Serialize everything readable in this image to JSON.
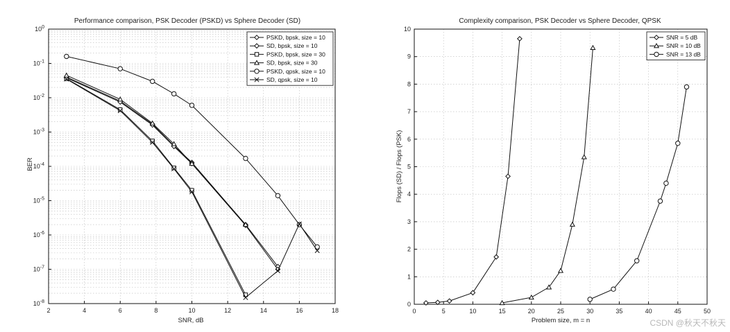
{
  "chart_data": [
    {
      "type": "line",
      "title": "Performance comparison, PSK Decoder (PSKD) vs Sphere Decoder (SD)",
      "xlabel": "SNR, dB",
      "ylabel": "BER",
      "xlim": [
        2,
        18
      ],
      "ylim": [
        1e-08,
        1
      ],
      "yscale": "log",
      "grid": true,
      "legend_position": "top-right",
      "xticks": [
        "2",
        "4",
        "6",
        "8",
        "10",
        "12",
        "14",
        "16",
        "18"
      ],
      "yticks": [
        {
          "base": "10",
          "exp": "0"
        },
        {
          "base": "10",
          "exp": "-1"
        },
        {
          "base": "10",
          "exp": "-2"
        },
        {
          "base": "10",
          "exp": "-3"
        },
        {
          "base": "10",
          "exp": "-4"
        },
        {
          "base": "10",
          "exp": "-5"
        },
        {
          "base": "10",
          "exp": "-6"
        },
        {
          "base": "10",
          "exp": "-7"
        },
        {
          "base": "10",
          "exp": "-8"
        }
      ],
      "series": [
        {
          "name": "PSKD, bpsk, size = 10",
          "marker": "diamond",
          "x": [
            3,
            6,
            7.8,
            9,
            10,
            13,
            14.8
          ],
          "y": [
            0.04,
            0.008,
            0.0017,
            0.0004,
            0.00013,
            2e-06,
            1.2e-07
          ]
        },
        {
          "name": "SD, bpsk, size = 10",
          "marker": "diamond",
          "x": [
            3,
            6,
            7.8,
            9,
            10,
            13,
            14.8
          ],
          "y": [
            0.038,
            0.0075,
            0.0016,
            0.00038,
            0.00012,
            1.9e-06,
            1e-07
          ]
        },
        {
          "name": "PSKD, bpsk, size = 30",
          "marker": "square",
          "x": [
            3,
            6,
            7.8,
            9,
            10,
            13
          ],
          "y": [
            0.036,
            0.0045,
            0.00055,
            9e-05,
            2e-05,
            1.8e-08
          ]
        },
        {
          "name": "SD, bpsk, size = 30",
          "marker": "triangle",
          "x": [
            3,
            6,
            7.8,
            9,
            10,
            13
          ],
          "y": [
            0.045,
            0.009,
            0.0018,
            0.00045,
            0.00012,
            2e-06
          ]
        },
        {
          "name": "PSKD, qpsk, size = 10",
          "marker": "circle",
          "x": [
            3,
            6,
            7.8,
            9,
            10,
            13,
            14.8,
            16,
            17
          ],
          "y": [
            0.16,
            0.07,
            0.03,
            0.013,
            0.006,
            0.00017,
            1.4e-05,
            2e-06,
            4.5e-07
          ]
        },
        {
          "name": "SD, qpsk, size = 10",
          "marker": "x",
          "x": [
            3,
            6,
            7.8,
            9,
            10,
            13,
            14.8,
            16,
            17
          ],
          "y": [
            0.035,
            0.0042,
            0.0005,
            8.5e-05,
            1.8e-05,
            1.5e-08,
            9e-08,
            2.1e-06,
            3.5e-07
          ]
        }
      ]
    },
    {
      "type": "line",
      "title": "Complexity comparison, PSK Decoder vs Sphere Decoder, QPSK",
      "xlabel": "Problem size, m = n",
      "ylabel": "Flops (SD) / Flops (PSK)",
      "xlim": [
        0,
        50
      ],
      "ylim": [
        0,
        10
      ],
      "grid": true,
      "legend_position": "top-right",
      "xticks": [
        "0",
        "5",
        "10",
        "15",
        "20",
        "25",
        "30",
        "35",
        "40",
        "45",
        "50"
      ],
      "yticks": [
        "0",
        "1",
        "2",
        "3",
        "4",
        "5",
        "6",
        "7",
        "8",
        "9",
        "10"
      ],
      "series": [
        {
          "name": "SNR = 5 dB",
          "marker": "diamond",
          "x": [
            2,
            4,
            6,
            10,
            14,
            16,
            18
          ],
          "y": [
            0.05,
            0.07,
            0.12,
            0.42,
            1.72,
            4.65,
            9.65
          ]
        },
        {
          "name": "SNR = 10 dB",
          "marker": "triangle",
          "x": [
            15,
            20,
            23,
            25,
            27,
            29,
            30.5
          ],
          "y": [
            0.05,
            0.25,
            0.62,
            1.22,
            2.9,
            5.35,
            9.32
          ]
        },
        {
          "name": "SNR = 13 dB",
          "marker": "circle",
          "x": [
            30,
            34,
            38,
            42,
            43,
            45,
            46.5
          ],
          "y": [
            0.18,
            0.55,
            1.58,
            3.75,
            4.4,
            5.85,
            7.9
          ]
        }
      ]
    }
  ],
  "watermark": "CSDN @秋天不秋天"
}
